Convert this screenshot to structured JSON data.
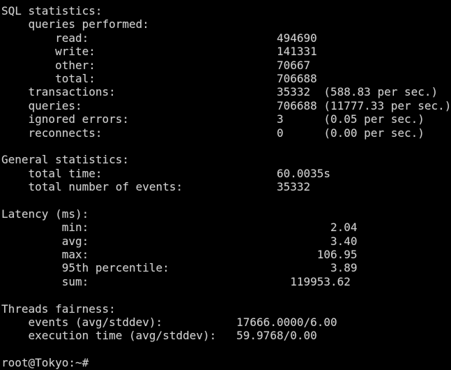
{
  "terminal": {
    "colors": {
      "background": "#000000",
      "foreground": "#cfcfcf"
    },
    "prompt_user_host": "root@Tokyo:~#",
    "lines": [
      "SQL statistics:",
      "    queries performed:",
      "        read:                            494690",
      "        write:                           141331",
      "        other:                           70667",
      "        total:                           706688",
      "    transactions:                        35332  (588.83 per sec.)",
      "    queries:                             706688 (11777.33 per sec.)",
      "    ignored errors:                      3      (0.05 per sec.)",
      "    reconnects:                          0      (0.00 per sec.)",
      "",
      "General statistics:",
      "    total time:                          60.0035s",
      "    total number of events:              35332",
      "",
      "Latency (ms):",
      "         min:                                    2.04",
      "         avg:                                    3.40",
      "         max:                                  106.95",
      "         95th percentile:                        3.89",
      "         sum:                              119953.62",
      "",
      "Threads fairness:",
      "    events (avg/stddev):           17666.0000/6.00",
      "    execution time (avg/stddev):   59.9768/0.00",
      "",
      "root@Tokyo:~#"
    ]
  }
}
